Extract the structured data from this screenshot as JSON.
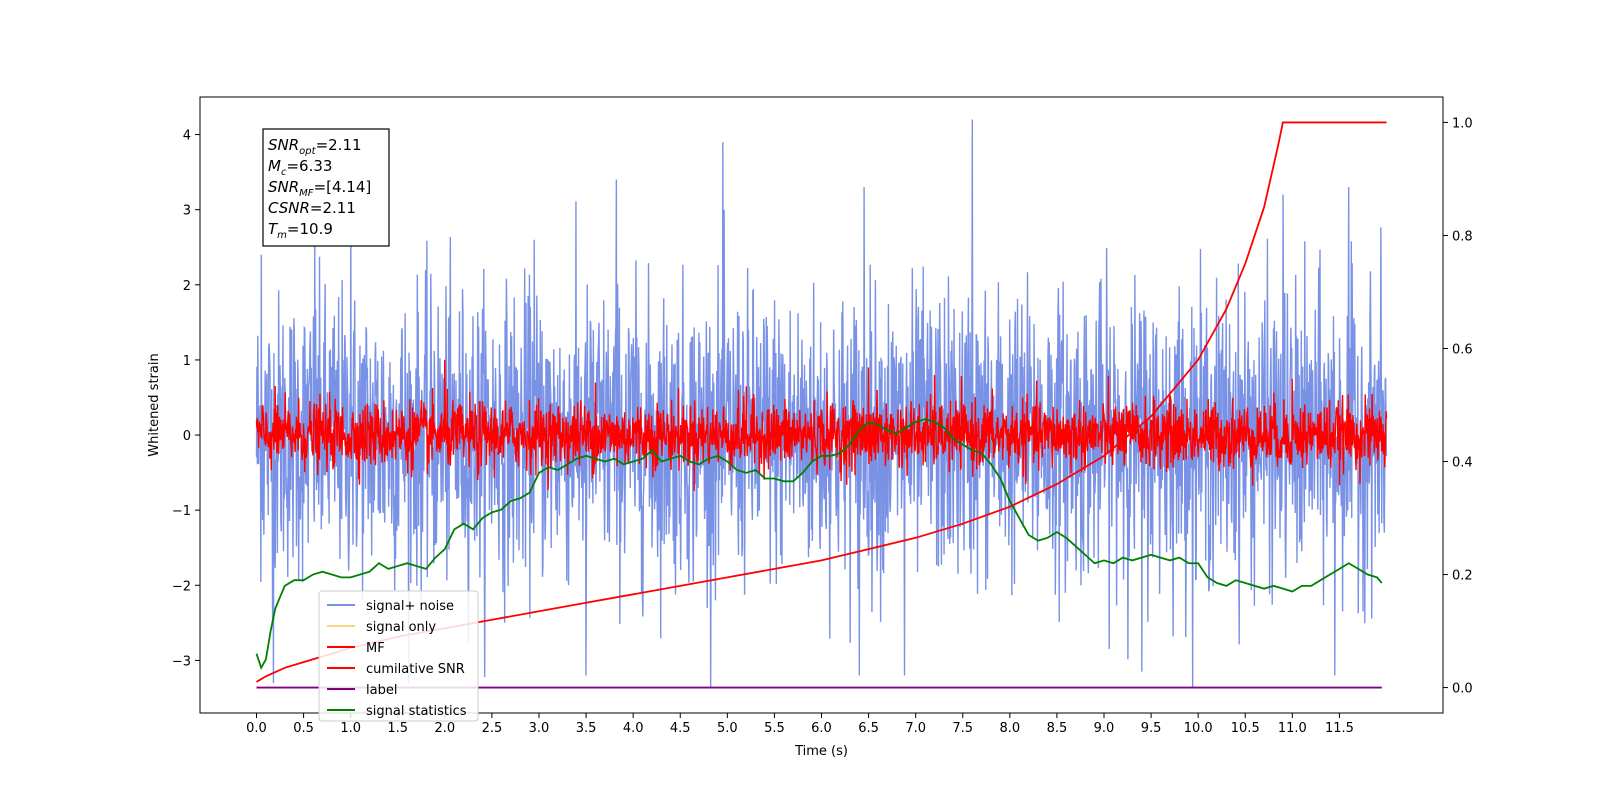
{
  "chart_data": {
    "type": "line",
    "xlabel": "Time (s)",
    "ylabel": "Whitened strain",
    "xlim": [
      -0.6,
      12.6
    ],
    "ylim": [
      -3.7,
      4.5
    ],
    "y2lim": [
      -0.045,
      1.045
    ],
    "x_ticks": [
      0.0,
      0.5,
      1.0,
      1.5,
      2.0,
      2.5,
      3.0,
      3.5,
      4.0,
      4.5,
      5.0,
      5.5,
      6.0,
      6.5,
      7.0,
      7.5,
      8.0,
      8.5,
      9.0,
      9.5,
      10.0,
      10.5,
      11.0,
      11.5
    ],
    "x_tick_labels": [
      "0.0",
      "0.5",
      "1.0",
      "1.5",
      "2.0",
      "2.5",
      "3.0",
      "3.5",
      "4.0",
      "4.5",
      "5.0",
      "5.5",
      "6.0",
      "6.5",
      "7.0",
      "7.5",
      "8.0",
      "8.5",
      "9.0",
      "9.5",
      "10.0",
      "10.5",
      "11.0",
      "11.5"
    ],
    "y_ticks": [
      -3,
      -2,
      -1,
      0,
      1,
      2,
      3,
      4
    ],
    "y_tick_labels": [
      "−3",
      "−2",
      "−1",
      "0",
      "1",
      "2",
      "3",
      "4"
    ],
    "y2_ticks": [
      0.0,
      0.2,
      0.4,
      0.6,
      0.8,
      1.0
    ],
    "y2_tick_labels": [
      "0.0",
      "0.2",
      "0.4",
      "0.6",
      "0.8",
      "1.0"
    ],
    "grid": false,
    "legend_position": "bottom-left",
    "annotation": {
      "lines": [
        {
          "sym": "SNR",
          "sub": "opt",
          "value": "=2.11"
        },
        {
          "sym": "M",
          "sub": "c",
          "value": "=6.33"
        },
        {
          "sym": "SNR",
          "sub": "MF",
          "value": "=[4.14]"
        },
        {
          "sym": "CSNR",
          "sub": "",
          "value": "=2.11"
        },
        {
          "sym": "T",
          "sub": "m",
          "value": "=10.9"
        }
      ]
    },
    "series": [
      {
        "name": "signal+ noise",
        "color": "#7992e6",
        "axis": "left",
        "style": "noise",
        "x_range": [
          0.0,
          12.0
        ],
        "spread_sd": 0.95,
        "center": 0.0,
        "peak_points": [
          [
            0.05,
            2.4
          ],
          [
            0.62,
            2.6
          ],
          [
            1.0,
            2.8
          ],
          [
            2.95,
            2.6
          ],
          [
            3.82,
            3.4
          ],
          [
            4.95,
            3.9
          ],
          [
            6.45,
            3.3
          ],
          [
            7.6,
            4.2
          ],
          [
            10.9,
            3.2
          ],
          [
            11.6,
            3.3
          ],
          [
            0.18,
            -3.3
          ],
          [
            3.5,
            -3.2
          ],
          [
            6.4,
            -3.2
          ],
          [
            6.88,
            -3.2
          ],
          [
            9.4,
            -3.15
          ],
          [
            11.45,
            -3.2
          ]
        ]
      },
      {
        "name": "signal only",
        "color": "#fdd27f",
        "axis": "left",
        "style": "hidden",
        "x": [],
        "y": []
      },
      {
        "name": "MF",
        "color": "#ff0000",
        "axis": "left",
        "style": "noise",
        "x_range": [
          0.0,
          12.0
        ],
        "spread_sd": 0.22,
        "center": 0.0,
        "peak_points": [
          [
            0.1,
            0.3
          ],
          [
            2.0,
            1.0
          ],
          [
            3.6,
            0.7
          ],
          [
            5.2,
            0.65
          ],
          [
            6.5,
            0.9
          ],
          [
            7.2,
            0.8
          ],
          [
            11.0,
            0.75
          ],
          [
            2.35,
            -0.6
          ],
          [
            6.2,
            -0.5
          ],
          [
            9.6,
            -0.45
          ]
        ]
      },
      {
        "name": "cumilative SNR",
        "color": "#ff0000",
        "axis": "right",
        "style": "line",
        "x": [
          0.0,
          0.1,
          0.3,
          0.5,
          1.0,
          1.5,
          2.0,
          2.5,
          3.0,
          3.5,
          4.0,
          4.5,
          5.0,
          5.5,
          6.0,
          6.5,
          7.0,
          7.5,
          8.0,
          8.5,
          9.0,
          9.5,
          10.0,
          10.3,
          10.5,
          10.7,
          10.85,
          10.9,
          11.5,
          12.0
        ],
        "y": [
          0.01,
          0.02,
          0.035,
          0.045,
          0.07,
          0.09,
          0.105,
          0.12,
          0.135,
          0.15,
          0.165,
          0.18,
          0.195,
          0.21,
          0.225,
          0.245,
          0.265,
          0.29,
          0.32,
          0.36,
          0.41,
          0.48,
          0.58,
          0.67,
          0.75,
          0.85,
          0.96,
          1.0,
          1.0,
          1.0
        ]
      },
      {
        "name": "label",
        "color": "#800080",
        "axis": "right",
        "style": "line",
        "x": [
          0.0,
          11.95
        ],
        "y": [
          0.0,
          0.0
        ]
      },
      {
        "name": "signal statistics",
        "color": "#008000",
        "axis": "right",
        "style": "line",
        "x": [
          0.0,
          0.05,
          0.1,
          0.15,
          0.2,
          0.3,
          0.4,
          0.5,
          0.6,
          0.7,
          0.8,
          0.9,
          1.0,
          1.1,
          1.2,
          1.3,
          1.4,
          1.5,
          1.6,
          1.7,
          1.8,
          1.9,
          2.0,
          2.1,
          2.2,
          2.3,
          2.4,
          2.5,
          2.6,
          2.7,
          2.8,
          2.9,
          3.0,
          3.1,
          3.2,
          3.3,
          3.4,
          3.5,
          3.6,
          3.7,
          3.8,
          3.9,
          4.0,
          4.1,
          4.2,
          4.3,
          4.4,
          4.5,
          4.6,
          4.7,
          4.8,
          4.9,
          5.0,
          5.1,
          5.2,
          5.3,
          5.4,
          5.5,
          5.6,
          5.7,
          5.8,
          5.9,
          6.0,
          6.1,
          6.2,
          6.3,
          6.4,
          6.5,
          6.6,
          6.7,
          6.8,
          6.9,
          7.0,
          7.1,
          7.2,
          7.3,
          7.4,
          7.5,
          7.6,
          7.7,
          7.8,
          7.9,
          8.0,
          8.1,
          8.2,
          8.3,
          8.4,
          8.5,
          8.6,
          8.7,
          8.8,
          8.9,
          9.0,
          9.1,
          9.2,
          9.3,
          9.4,
          9.5,
          9.6,
          9.7,
          9.8,
          9.9,
          10.0,
          10.1,
          10.2,
          10.3,
          10.4,
          10.5,
          10.6,
          10.7,
          10.8,
          10.9,
          11.0,
          11.1,
          11.2,
          11.3,
          11.4,
          11.5,
          11.6,
          11.7,
          11.8,
          11.9,
          11.95
        ],
        "y": [
          0.06,
          0.035,
          0.05,
          0.1,
          0.14,
          0.18,
          0.19,
          0.19,
          0.2,
          0.205,
          0.2,
          0.195,
          0.195,
          0.2,
          0.205,
          0.22,
          0.21,
          0.215,
          0.22,
          0.215,
          0.21,
          0.23,
          0.245,
          0.28,
          0.29,
          0.28,
          0.3,
          0.31,
          0.315,
          0.33,
          0.335,
          0.345,
          0.38,
          0.39,
          0.385,
          0.395,
          0.405,
          0.41,
          0.405,
          0.4,
          0.405,
          0.395,
          0.4,
          0.405,
          0.42,
          0.4,
          0.405,
          0.41,
          0.4,
          0.395,
          0.405,
          0.41,
          0.4,
          0.385,
          0.38,
          0.385,
          0.37,
          0.37,
          0.365,
          0.365,
          0.38,
          0.4,
          0.41,
          0.41,
          0.415,
          0.43,
          0.455,
          0.47,
          0.465,
          0.455,
          0.45,
          0.46,
          0.47,
          0.475,
          0.47,
          0.46,
          0.44,
          0.43,
          0.42,
          0.415,
          0.395,
          0.37,
          0.33,
          0.3,
          0.27,
          0.26,
          0.265,
          0.275,
          0.265,
          0.25,
          0.235,
          0.22,
          0.225,
          0.22,
          0.23,
          0.225,
          0.23,
          0.235,
          0.23,
          0.225,
          0.23,
          0.22,
          0.22,
          0.195,
          0.185,
          0.18,
          0.19,
          0.185,
          0.18,
          0.175,
          0.18,
          0.175,
          0.17,
          0.18,
          0.18,
          0.19,
          0.2,
          0.21,
          0.22,
          0.21,
          0.2,
          0.195,
          0.185
        ]
      }
    ]
  }
}
